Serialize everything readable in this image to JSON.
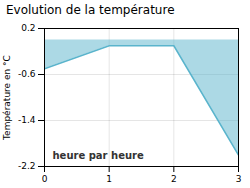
{
  "chart_data": {
    "type": "area",
    "title": "Evolution de la température",
    "xlabel": "heure par heure",
    "ylabel": "Température en °C",
    "x": [
      0,
      1,
      2,
      3
    ],
    "values": [
      -0.5,
      -0.1,
      -0.1,
      -2.0
    ],
    "color": "#5ab4cc",
    "line_style": "solid",
    "xlim": [
      0,
      3
    ],
    "ylim": [
      -2.2,
      0.2
    ],
    "xticks": [
      0,
      1,
      2,
      3
    ],
    "yticks": [
      0.2,
      -0.6,
      -1.4,
      -2.2
    ],
    "grid": true
  }
}
